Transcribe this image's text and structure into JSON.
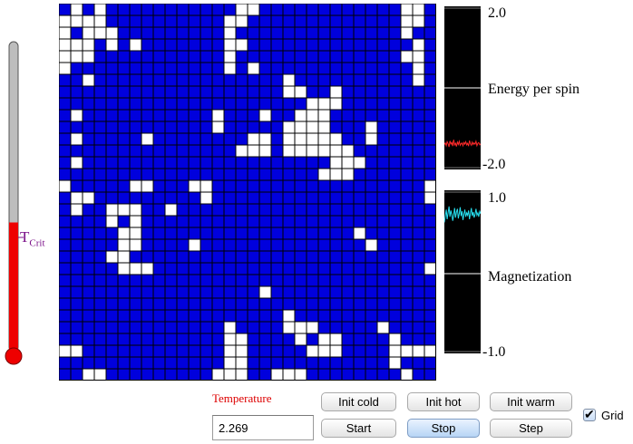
{
  "thermometer": {
    "critical_label": "T",
    "critical_sub": "Crit",
    "level_fraction": 0.42
  },
  "lattice": {
    "size": 32,
    "spin_up_color": "#ffffff",
    "spin_down_color": "#0000dd",
    "grid_color": "#000000",
    "up_cells": [
      [
        0,
        1
      ],
      [
        0,
        3
      ],
      [
        0,
        15
      ],
      [
        0,
        16
      ],
      [
        0,
        29
      ],
      [
        0,
        30
      ],
      [
        1,
        0
      ],
      [
        1,
        1
      ],
      [
        1,
        2
      ],
      [
        1,
        3
      ],
      [
        1,
        14
      ],
      [
        1,
        15
      ],
      [
        1,
        29
      ],
      [
        1,
        30
      ],
      [
        2,
        0
      ],
      [
        2,
        2
      ],
      [
        2,
        3
      ],
      [
        2,
        4
      ],
      [
        2,
        14
      ],
      [
        2,
        29
      ],
      [
        3,
        0
      ],
      [
        2,
        2
      ],
      [
        3,
        1
      ],
      [
        3,
        2
      ],
      [
        3,
        4
      ],
      [
        3,
        6
      ],
      [
        3,
        14
      ],
      [
        3,
        15
      ],
      [
        3,
        30
      ],
      [
        4,
        0
      ],
      [
        4,
        1
      ],
      [
        4,
        2
      ],
      [
        4,
        14
      ],
      [
        4,
        29
      ],
      [
        4,
        30
      ],
      [
        5,
        0
      ],
      [
        5,
        14
      ],
      [
        5,
        16
      ],
      [
        5,
        30
      ],
      [
        6,
        2
      ],
      [
        6,
        19
      ],
      [
        6,
        30
      ],
      [
        7,
        19
      ],
      [
        7,
        20
      ],
      [
        7,
        23
      ],
      [
        8,
        21
      ],
      [
        8,
        22
      ],
      [
        8,
        23
      ],
      [
        9,
        1
      ],
      [
        9,
        13
      ],
      [
        9,
        17
      ],
      [
        9,
        20
      ],
      [
        9,
        21
      ],
      [
        9,
        22
      ],
      [
        10,
        13
      ],
      [
        10,
        19
      ],
      [
        10,
        20
      ],
      [
        10,
        21
      ],
      [
        10,
        22
      ],
      [
        10,
        26
      ],
      [
        11,
        1
      ],
      [
        11,
        7
      ],
      [
        11,
        16
      ],
      [
        11,
        17
      ],
      [
        11,
        19
      ],
      [
        11,
        20
      ],
      [
        11,
        21
      ],
      [
        11,
        22
      ],
      [
        11,
        23
      ],
      [
        11,
        26
      ],
      [
        12,
        15
      ],
      [
        12,
        16
      ],
      [
        12,
        17
      ],
      [
        12,
        19
      ],
      [
        12,
        20
      ],
      [
        12,
        21
      ],
      [
        12,
        22
      ],
      [
        12,
        23
      ],
      [
        12,
        24
      ],
      [
        13,
        1
      ],
      [
        13,
        23
      ],
      [
        13,
        24
      ],
      [
        13,
        25
      ],
      [
        14,
        22
      ],
      [
        14,
        23
      ],
      [
        14,
        24
      ],
      [
        15,
        0
      ],
      [
        15,
        6
      ],
      [
        15,
        7
      ],
      [
        15,
        11
      ],
      [
        15,
        12
      ],
      [
        15,
        31
      ],
      [
        16,
        1
      ],
      [
        16,
        2
      ],
      [
        16,
        12
      ],
      [
        16,
        31
      ],
      [
        17,
        1
      ],
      [
        17,
        4
      ],
      [
        17,
        5
      ],
      [
        17,
        6
      ],
      [
        17,
        9
      ],
      [
        18,
        4
      ],
      [
        18,
        6
      ],
      [
        19,
        5
      ],
      [
        19,
        6
      ],
      [
        19,
        25
      ],
      [
        20,
        5
      ],
      [
        20,
        6
      ],
      [
        20,
        11
      ],
      [
        20,
        26
      ],
      [
        21,
        4
      ],
      [
        21,
        5
      ],
      [
        22,
        5
      ],
      [
        22,
        6
      ],
      [
        22,
        7
      ],
      [
        22,
        31
      ],
      [
        24,
        17
      ],
      [
        26,
        19
      ],
      [
        27,
        14
      ],
      [
        27,
        19
      ],
      [
        27,
        20
      ],
      [
        27,
        21
      ],
      [
        27,
        27
      ],
      [
        28,
        14
      ],
      [
        28,
        15
      ],
      [
        28,
        20
      ],
      [
        28,
        22
      ],
      [
        28,
        23
      ],
      [
        28,
        28
      ],
      [
        29,
        0
      ],
      [
        29,
        1
      ],
      [
        29,
        14
      ],
      [
        29,
        15
      ],
      [
        29,
        21
      ],
      [
        29,
        22
      ],
      [
        29,
        23
      ],
      [
        29,
        28
      ],
      [
        29,
        29
      ],
      [
        29,
        30
      ],
      [
        29,
        31
      ],
      [
        30,
        14
      ],
      [
        30,
        15
      ],
      [
        30,
        28
      ],
      [
        31,
        2
      ],
      [
        31,
        3
      ],
      [
        31,
        13
      ],
      [
        31,
        14
      ],
      [
        31,
        15
      ],
      [
        31,
        18
      ],
      [
        31,
        19
      ],
      [
        31,
        20
      ],
      [
        31,
        29
      ]
    ]
  },
  "energy_plot": {
    "label": "Energy per spin",
    "ymax_label": "2.0",
    "ymin_label": "-2.0",
    "ylim": [
      -2.0,
      2.0
    ],
    "trace_color": "#ff2a2a",
    "values": [
      -1.42,
      -1.38,
      -1.45,
      -1.35,
      -1.4,
      -1.48,
      -1.33,
      -1.41,
      -1.37,
      -1.46,
      -1.3,
      -1.43,
      -1.39,
      -1.47,
      -1.36,
      -1.42,
      -1.34,
      -1.44,
      -1.4,
      -1.38,
      -1.45,
      -1.37,
      -1.41,
      -1.35,
      -1.43,
      -1.39,
      -1.46,
      -1.32,
      -1.4,
      -1.44,
      -1.36,
      -1.42,
      -1.38,
      -1.41,
      -1.34,
      -1.45,
      -1.39,
      -1.37,
      -1.43,
      -1.4
    ]
  },
  "magnetization_plot": {
    "label": "Magnetization",
    "ymax_label": "1.0",
    "ymin_label": "-1.0",
    "ylim": [
      -1.0,
      1.0
    ],
    "trace_color": "#28e0f0",
    "values": [
      0.62,
      0.7,
      0.78,
      0.66,
      0.74,
      0.82,
      0.69,
      0.77,
      0.72,
      0.64,
      0.71,
      0.8,
      0.68,
      0.75,
      0.79,
      0.67,
      0.73,
      0.81,
      0.7,
      0.76,
      0.65,
      0.72,
      0.78,
      0.69,
      0.74,
      0.71,
      0.77,
      0.66,
      0.73,
      0.8,
      0.7,
      0.75,
      0.68,
      0.72,
      0.79,
      0.71,
      0.74,
      0.69,
      0.76,
      0.73
    ]
  },
  "controls": {
    "temperature_label": "Temperature",
    "temperature_value": "2.269",
    "init_cold": "Init cold",
    "init_hot": "Init hot",
    "init_warm": "Init warm",
    "start": "Start",
    "stop": "Stop",
    "step": "Step",
    "grid_label": "Grid",
    "grid_checked": true
  }
}
